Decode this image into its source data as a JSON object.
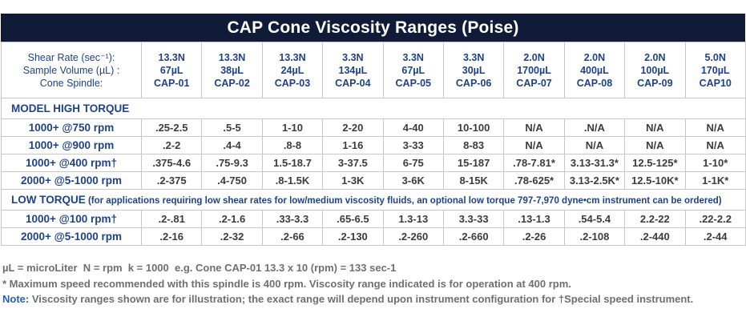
{
  "title": "CAP Cone Viscosity Ranges (Poise)",
  "colors": {
    "title_bar_bg": "#101b38",
    "title_text": "#ffffff",
    "navy_text": "#1e4288",
    "data_text": "#3c3c3c",
    "footnote_gray": "#6f6f6f",
    "note_blue": "#2a5db0",
    "border": "#c8c8c8"
  },
  "header": {
    "label_lines": {
      "line1": "Shear Rate (sec⁻¹):",
      "line2": "Sample Volume (µL) :",
      "line3": "Cone Spindle:"
    },
    "columns": [
      {
        "shear": "13.3N",
        "volume": "67µL",
        "spindle": "CAP-01"
      },
      {
        "shear": "13.3N",
        "volume": "38µL",
        "spindle": "CAP-02"
      },
      {
        "shear": "13.3N",
        "volume": "24µL",
        "spindle": "CAP-03"
      },
      {
        "shear": "3.3N",
        "volume": "134µL",
        "spindle": "CAP-04"
      },
      {
        "shear": "3.3N",
        "volume": "67µL",
        "spindle": "CAP-05"
      },
      {
        "shear": "3.3N",
        "volume": "30µL",
        "spindle": "CAP-06"
      },
      {
        "shear": "2.0N",
        "volume": "1700µL",
        "spindle": "CAP-07"
      },
      {
        "shear": "2.0N",
        "volume": "400µL",
        "spindle": "CAP-08"
      },
      {
        "shear": "2.0N",
        "volume": "100µL",
        "spindle": "CAP-09"
      },
      {
        "shear": "5.0N",
        "volume": "170µL",
        "spindle": "CAP10"
      }
    ]
  },
  "sections": [
    {
      "label": "MODEL HIGH TORQUE",
      "suffix": "",
      "rows": [
        {
          "label": "1000+ @750 rpm",
          "values": [
            ".25-2.5",
            ".5-5",
            "1-10",
            "2-20",
            "4-40",
            "10-100",
            "N/A",
            ".N/A",
            "N/A",
            "N/A"
          ]
        },
        {
          "label": "1000+ @900 rpm",
          "values": [
            ".2-2",
            ".4-4",
            ".8-8",
            "1-16",
            "3-33",
            "8-83",
            "N/A",
            "N/A",
            "N/A",
            "N/A"
          ]
        },
        {
          "label": "1000+ @400 rpm†",
          "values": [
            ".375-4.6",
            ".75-9.3",
            "1.5-18.7",
            "3-37.5",
            "6-75",
            "15-187",
            ".78-7.81*",
            "3.13-31.3*",
            "12.5-125*",
            "1-10*"
          ]
        },
        {
          "label": "2000+ @5-1000 rpm",
          "values": [
            ".2-375",
            ".4-750",
            ".8-1.5K",
            "1-3K",
            "3-6K",
            "8-15K",
            ".78-625*",
            "3.13-2.5K*",
            "12.5-10K*",
            "1-1K*"
          ]
        }
      ]
    },
    {
      "label": "LOW TORQUE",
      "suffix": " (for applications requiring low shear rates for low/medium viscosity fluids, an optional low torque 797-7,970 dyne•cm instrument can be ordered)",
      "rows": [
        {
          "label": "1000+ @100 rpm†",
          "values": [
            ".2-.81",
            ".2-1.6",
            ".33-3.3",
            ".65-6.5",
            "1.3-13",
            "3.3-33",
            ".13-1.3",
            ".54-5.4",
            "2.2-22",
            ".22-2.2"
          ]
        },
        {
          "label": "2000+ @5-1000 rpm",
          "values": [
            ".2-16",
            ".2-32",
            ".2-66",
            ".2-130",
            ".2-260",
            ".2-660",
            ".2-26",
            ".2-108",
            ".2-440",
            ".2-44"
          ]
        }
      ]
    }
  ],
  "footnotes": {
    "line1": "µL = microLiter  N = rpm  k = 1000  e.g. Cone CAP-01 13.3 x 10 (rpm) = 133 sec-1",
    "line2": "* Maximum speed recommended with this spindle is 400 rpm. Viscosity range indicated is for operation at 400 rpm.",
    "note_label": "Note:",
    "note_text": " Viscosity ranges shown are for illustration; the exact range will depend upon instrument configuration for †Special speed instrument."
  }
}
